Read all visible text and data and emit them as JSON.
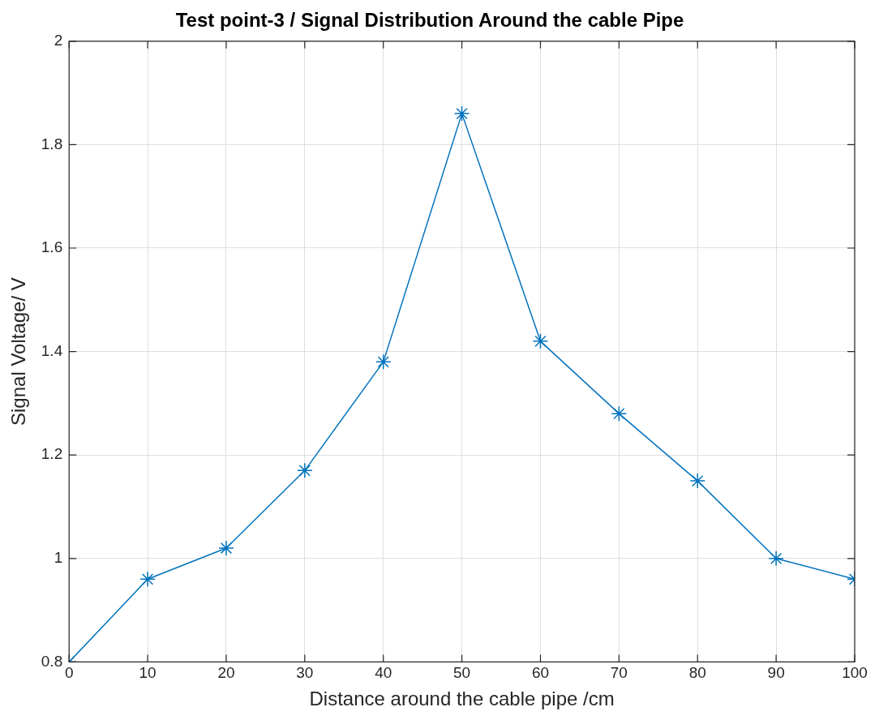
{
  "chart_data": {
    "type": "line",
    "title": "Test point-3 / Signal Distribution Around the cable Pipe",
    "xlabel": "Distance around the cable pipe /cm",
    "ylabel": "Signal Voltage/ V",
    "x": [
      0,
      10,
      20,
      30,
      40,
      50,
      60,
      70,
      80,
      90,
      100
    ],
    "series": [
      {
        "color": "#0072bd",
        "values": [
          0.8,
          0.96,
          1.02,
          1.17,
          1.38,
          1.86,
          1.42,
          1.28,
          1.15,
          1.0,
          0.96
        ]
      }
    ],
    "xlim": [
      0,
      100
    ],
    "xticks": [
      0,
      10,
      20,
      30,
      40,
      50,
      60,
      70,
      80,
      90,
      100
    ],
    "ylim": [
      0.8,
      2
    ],
    "yticks": [
      0.8,
      1,
      1.2,
      1.4,
      1.6,
      1.8,
      2
    ],
    "grid": true,
    "legend": false,
    "marker": "cross",
    "line_style": "solid"
  }
}
